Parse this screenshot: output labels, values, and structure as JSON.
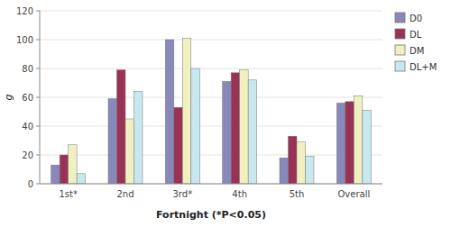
{
  "chart_data": {
    "type": "bar",
    "xlabel": "Fortnight (*P<0.05)",
    "ylabel": "g",
    "categories": [
      "1st*",
      "2nd",
      "3rd*",
      "4th",
      "5th",
      "Overall"
    ],
    "series": [
      {
        "name": "D0",
        "color": "#8888BB",
        "values": [
          13,
          59,
          100,
          71,
          18,
          56
        ]
      },
      {
        "name": "DL",
        "color": "#993355",
        "values": [
          20,
          79,
          53,
          77,
          33,
          57
        ]
      },
      {
        "name": "DM",
        "color": "#F0F0C0",
        "values": [
          27,
          45,
          101,
          79,
          29,
          61
        ]
      },
      {
        "name": "DL+M",
        "color": "#C8E8F0",
        "values": [
          7,
          64,
          80,
          72,
          19,
          51
        ]
      }
    ],
    "ylim": [
      0,
      120
    ],
    "yticks": [
      0,
      20,
      40,
      60,
      80,
      100,
      120
    ],
    "grid": true,
    "legend": "right"
  }
}
